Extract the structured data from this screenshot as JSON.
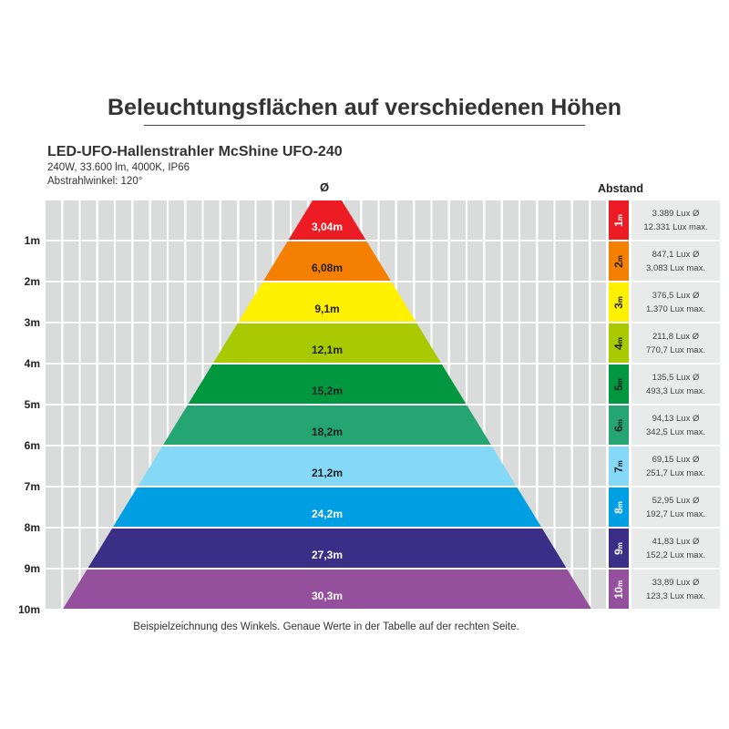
{
  "title": "Beleuchtungsflächen auf verschiedenen Höhen",
  "product": {
    "name": "LED-UFO-Hallenstrahler McShine UFO-240",
    "specs": "240W, 33.600 lm, 4000K, IP66",
    "angle": "Abstrahlwinkel: 120°"
  },
  "diameter_header": "Ø",
  "distance_header": "Abstand",
  "caption": "Beispielzeichnung des Winkels. Genaue Werte in der Tabelle auf der rechten Seite.",
  "levels": [
    {
      "height": "1m",
      "num": "1",
      "unit": "m",
      "diameter": "3,04m",
      "lux_avg": "3.389 Lux Ø",
      "lux_max": "12.331 Lux max.",
      "color": "#ed1c24",
      "text_color": "#ffffff"
    },
    {
      "height": "2m",
      "num": "2",
      "unit": "m",
      "diameter": "6,08m",
      "lux_avg": "847,1 Lux Ø",
      "lux_max": "3.083 Lux max.",
      "color": "#f57f00",
      "text_color": "#222222"
    },
    {
      "height": "3m",
      "num": "3",
      "unit": "m",
      "diameter": "9,1m",
      "lux_avg": "376,5 Lux Ø",
      "lux_max": "1.370 Lux max.",
      "color": "#fff100",
      "text_color": "#222222"
    },
    {
      "height": "4m",
      "num": "4",
      "unit": "m",
      "diameter": "12,1m",
      "lux_avg": "211,8 Lux Ø",
      "lux_max": "770,7 Lux max.",
      "color": "#a9c900",
      "text_color": "#222222"
    },
    {
      "height": "5m",
      "num": "5",
      "unit": "m",
      "diameter": "15,2m",
      "lux_avg": "135,5 Lux Ø",
      "lux_max": "493,3 Lux max.",
      "color": "#00973f",
      "text_color": "#222222"
    },
    {
      "height": "6m",
      "num": "6",
      "unit": "m",
      "diameter": "18,2m",
      "lux_avg": "94,13 Lux Ø",
      "lux_max": "342,5 Lux max.",
      "color": "#24a572",
      "text_color": "#222222"
    },
    {
      "height": "7m",
      "num": "7",
      "unit": "m",
      "diameter": "21,2m",
      "lux_avg": "69,15 Lux Ø",
      "lux_max": "251,7 Lux max.",
      "color": "#86d9f6",
      "text_color": "#222222"
    },
    {
      "height": "8m",
      "num": "8",
      "unit": "m",
      "diameter": "24,2m",
      "lux_avg": "52,95 Lux Ø",
      "lux_max": "192,7 Lux max.",
      "color": "#009fe3",
      "text_color": "#ffffff"
    },
    {
      "height": "9m",
      "num": "9",
      "unit": "m",
      "diameter": "27,3m",
      "lux_avg": "41,83 Lux Ø",
      "lux_max": "152,2 Lux max.",
      "color": "#3a2e86",
      "text_color": "#ffffff"
    },
    {
      "height": "10m",
      "num": "10",
      "unit": "m",
      "diameter": "30,3m",
      "lux_avg": "33,89 Lux Ø",
      "lux_max": "123,3 Lux max.",
      "color": "#944f9d",
      "text_color": "#ffffff"
    }
  ]
}
